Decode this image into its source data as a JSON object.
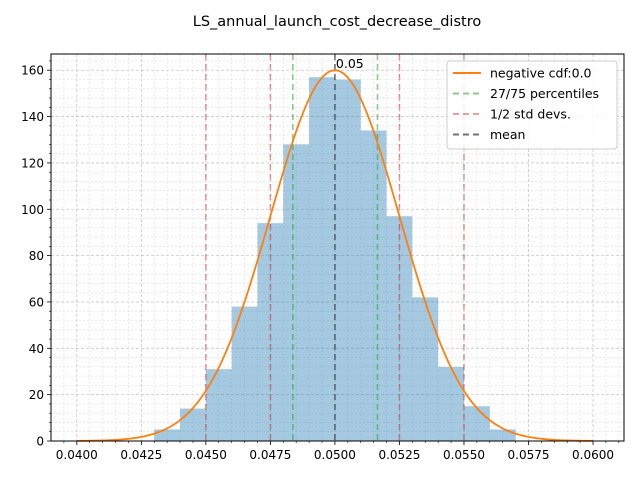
{
  "chart_data": {
    "type": "bar",
    "title": "LS_annual_launch_cost_decrease_distro",
    "xlabel": "",
    "ylabel": "",
    "xlim": [
      0.039,
      0.0612
    ],
    "ylim": [
      0,
      167
    ],
    "x_ticks": [
      "0.0400",
      "0.0425",
      "0.0450",
      "0.0475",
      "0.0500",
      "0.0525",
      "0.0550",
      "0.0575",
      "0.0600"
    ],
    "y_ticks": [
      "0",
      "20",
      "40",
      "60",
      "80",
      "100",
      "120",
      "140",
      "160"
    ],
    "grid": "on (major and minor, dashed)",
    "legend_placement": "upper right",
    "histogram": {
      "bin_edges": [
        0.043,
        0.044,
        0.045,
        0.046,
        0.047,
        0.048,
        0.049,
        0.05,
        0.051,
        0.052,
        0.053,
        0.054,
        0.055,
        0.056,
        0.057
      ],
      "counts": [
        5,
        14,
        31,
        58,
        94,
        128,
        157,
        156,
        134,
        97,
        62,
        32,
        15,
        5
      ],
      "color": "#1f77b4",
      "alpha": 0.4
    },
    "curve": {
      "name": "negative cdf:0.0",
      "color": "#ff7f0e",
      "peak_x": 0.05,
      "peak_y": 160,
      "std": 0.0025,
      "x_range": [
        0.04,
        0.06
      ]
    },
    "percentile_lines": {
      "name": "27/75 percentiles",
      "color": "#2ca02c",
      "x": [
        0.04837,
        0.05165
      ]
    },
    "std_lines": {
      "name": "1/2 std devs.",
      "color": "#d62728",
      "x": [
        0.045,
        0.0475,
        0.0525,
        0.055
      ]
    },
    "mean_line": {
      "name": "mean",
      "color": "#444444",
      "x": 0.05
    },
    "annotations": [
      {
        "text": "0.05",
        "x": 0.05,
        "y": 160
      }
    ]
  }
}
